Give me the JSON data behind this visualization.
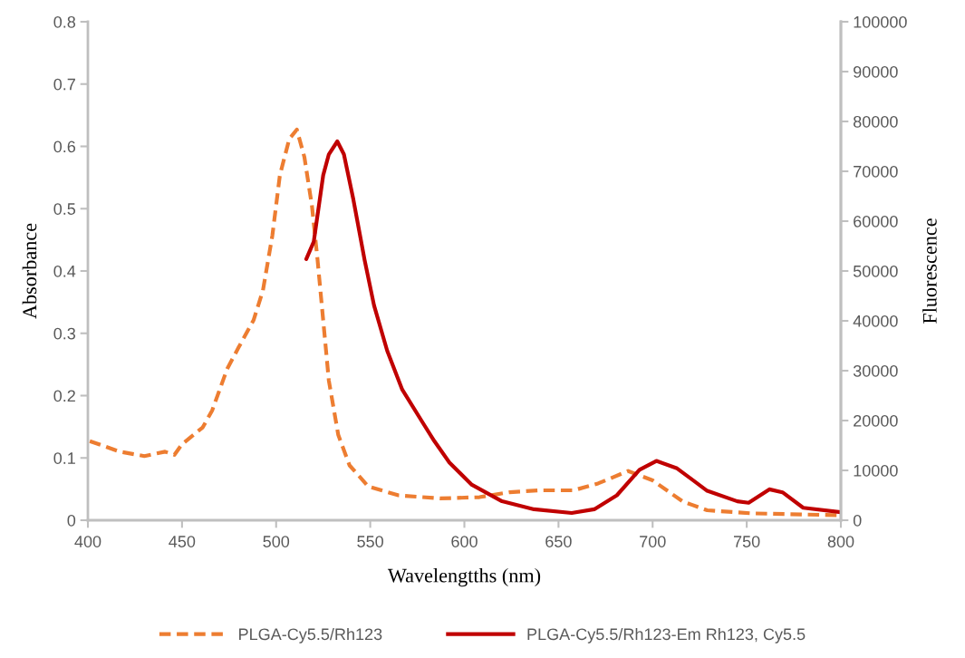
{
  "chart_data": {
    "type": "line",
    "xlabel": "Wavelengtths (nm)",
    "ylabel": "Absorbance",
    "y2label": "Fluorescence",
    "xlim": [
      400,
      800
    ],
    "xticks": [
      400,
      450,
      500,
      550,
      600,
      650,
      700,
      750,
      800
    ],
    "ylim": [
      0,
      0.8
    ],
    "yticks": [
      0,
      0.1,
      0.2,
      0.3,
      0.4,
      0.5,
      0.6,
      0.7,
      0.8
    ],
    "y2lim": [
      0,
      100000
    ],
    "y2ticks": [
      0,
      10000,
      20000,
      30000,
      40000,
      50000,
      60000,
      70000,
      80000,
      90000,
      100000
    ],
    "grid": false,
    "legend": "bottom",
    "series": [
      {
        "name": "PLGA-Cy5.5/Rh123",
        "color": "#ed7d31",
        "line_style": "dashed",
        "x": [
          401,
          417,
          430,
          441,
          446,
          450,
          461,
          466,
          474,
          480,
          488,
          493,
          498,
          502,
          507,
          511,
          515,
          519,
          522,
          525,
          528,
          533,
          539,
          549,
          565,
          587,
          608,
          624,
          640,
          658,
          671,
          687,
          700,
          716,
          729,
          753,
          800
        ],
        "values": [
          0.127,
          0.11,
          0.103,
          0.11,
          0.105,
          0.122,
          0.149,
          0.176,
          0.243,
          0.277,
          0.321,
          0.369,
          0.457,
          0.554,
          0.612,
          0.627,
          0.583,
          0.505,
          0.418,
          0.321,
          0.224,
          0.137,
          0.088,
          0.054,
          0.04,
          0.035,
          0.037,
          0.045,
          0.048,
          0.048,
          0.059,
          0.079,
          0.064,
          0.03,
          0.016,
          0.011,
          0.008
        ]
      },
      {
        "name": "PLGA-Cy5.5/Rh123-Em Rh123, Cy5.5",
        "color": "#c00000",
        "line_style": "solid",
        "axis": "y2",
        "x": [
          516,
          520,
          525,
          528,
          532.5,
          536,
          541,
          547,
          552,
          559,
          567,
          578,
          584,
          592,
          604,
          620,
          637,
          657,
          669,
          681,
          693,
          702,
          713,
          729,
          745,
          751,
          762,
          769,
          780,
          800
        ],
        "values": [
          52400,
          55900,
          69200,
          73400,
          76000,
          73400,
          64400,
          52200,
          43100,
          34000,
          26200,
          19500,
          15900,
          11600,
          7100,
          3800,
          2200,
          1450,
          2200,
          5000,
          10100,
          11900,
          10400,
          5900,
          3800,
          3500,
          6200,
          5600,
          2500,
          1600
        ]
      }
    ]
  }
}
